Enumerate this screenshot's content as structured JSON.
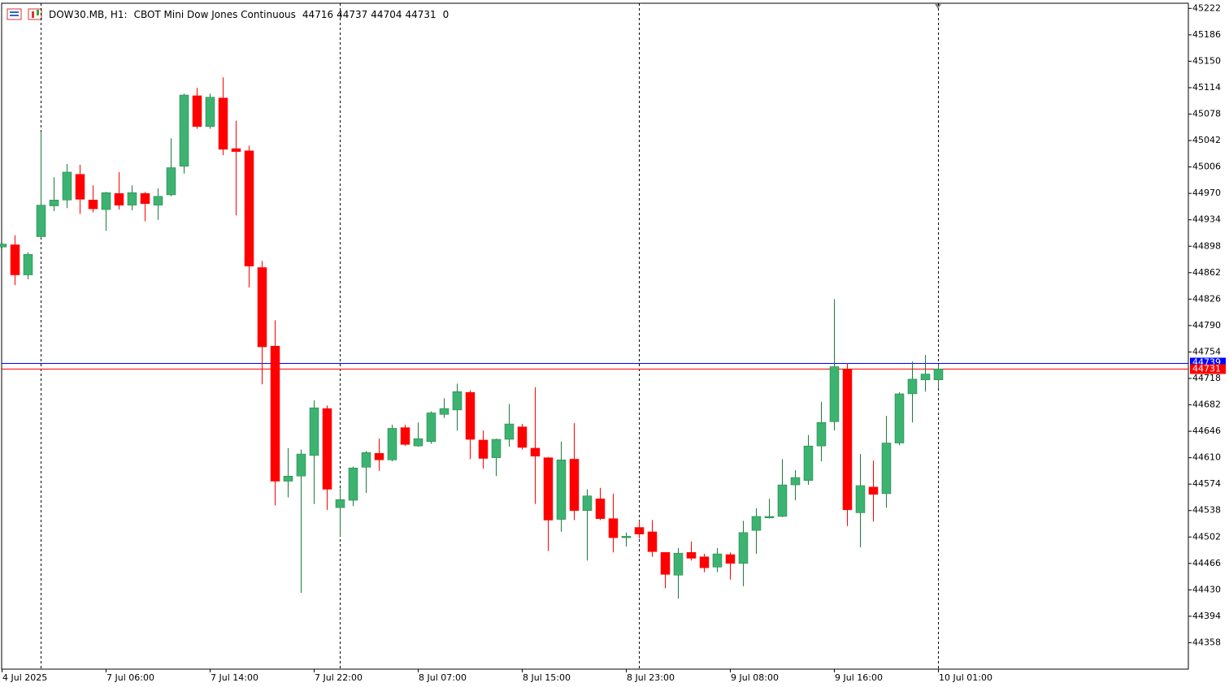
{
  "chart_data": {
    "type": "candlestick",
    "title": "DOW30.MB, H1:",
    "subtitle": "CBOT Mini Dow Jones Continuous",
    "header_extra": 0,
    "categories": [
      "4 Jul 2025",
      null,
      null,
      null,
      null,
      null,
      null,
      null,
      "7 Jul 06:00",
      null,
      null,
      null,
      null,
      null,
      null,
      null,
      "7 Jul 14:00",
      null,
      null,
      null,
      null,
      null,
      null,
      null,
      "7 Jul 22:00",
      null,
      null,
      null,
      null,
      null,
      null,
      null,
      "8 Jul 07:00",
      null,
      null,
      null,
      null,
      null,
      null,
      null,
      "8 Jul 15:00",
      null,
      null,
      null,
      null,
      null,
      null,
      null,
      "8 Jul 23:00",
      null,
      null,
      null,
      null,
      null,
      null,
      null,
      "9 Jul 08:00",
      null,
      null,
      null,
      null,
      null,
      null,
      null,
      "9 Jul 16:00",
      null,
      null,
      null,
      null,
      null,
      null,
      null,
      "10 Jul 01:00"
    ],
    "open": [
      44897,
      44900,
      44859,
      44911,
      44953,
      44961,
      44996,
      44961,
      44948,
      44970,
      44954,
      44970,
      44954,
      44968,
      45007,
      45103,
      45061,
      45100,
      45031,
      45028,
      44869,
      44762,
      44578,
      44585,
      44613,
      44677,
      44542,
      44552,
      44597,
      44616,
      44607,
      44651,
      44626,
      44632,
      44669,
      44675,
      44699,
      44634,
      44610,
      44635,
      44652,
      44623,
      44610,
      44526,
      44608,
      44538,
      44554,
      44527,
      44501,
      44515,
      44509,
      44481,
      44450,
      44481,
      44475,
      44461,
      44478,
      44466,
      44511,
      44528,
      44530,
      44573,
      44579,
      44626,
      44659,
      44731,
      44535,
      44570,
      44561,
      44630,
      44697,
      44716,
      44716
    ],
    "high": [
      44903,
      44913,
      44890,
      45054,
      44992,
      45010,
      45009,
      44981,
      44972,
      44999,
      44981,
      44972,
      44977,
      45045,
      45106,
      45114,
      45106,
      45128,
      45069,
      45035,
      44878,
      44797,
      44623,
      44621,
      44688,
      44681,
      44568,
      44598,
      44619,
      44636,
      44655,
      44655,
      44658,
      44673,
      44691,
      44711,
      44702,
      44647,
      44636,
      44683,
      44656,
      44706,
      44611,
      44632,
      44657,
      44567,
      44569,
      44561,
      44508,
      44524,
      44525,
      44481,
      44487,
      44496,
      44479,
      44487,
      44481,
      44524,
      44541,
      44554,
      44608,
      44593,
      44641,
      44686,
      44826,
      44739,
      44615,
      44606,
      44667,
      44699,
      44741,
      44750,
      44737
    ],
    "low": [
      44895,
      44845,
      44853,
      44909,
      44946,
      44950,
      44942,
      44944,
      44919,
      44948,
      44947,
      44932,
      44934,
      44966,
      44997,
      45058,
      45058,
      45022,
      44940,
      44842,
      44710,
      44545,
      44556,
      44426,
      44547,
      44539,
      44503,
      44544,
      44562,
      44592,
      44605,
      44626,
      44625,
      44629,
      44664,
      44647,
      44608,
      44595,
      44585,
      44625,
      44621,
      44547,
      44483,
      44509,
      44525,
      44470,
      44525,
      44481,
      44489,
      44500,
      44475,
      44432,
      44418,
      44470,
      44454,
      44454,
      44444,
      44435,
      44479,
      44527,
      44529,
      44552,
      44573,
      44605,
      44647,
      44517,
      44488,
      44523,
      44542,
      44627,
      44658,
      44700,
      44704
    ],
    "close": [
      44901,
      44859,
      44887,
      44954,
      44961,
      44999,
      44962,
      44949,
      44971,
      44954,
      44971,
      44956,
      44966,
      45005,
      45104,
      45061,
      45101,
      45030,
      45027,
      44871,
      44761,
      44578,
      44585,
      44615,
      44678,
      44567,
      44553,
      44596,
      44617,
      44607,
      44650,
      44628,
      44636,
      44671,
      44677,
      44700,
      44635,
      44609,
      44635,
      44656,
      44624,
      44612,
      44525,
      44607,
      44538,
      44558,
      44527,
      44501,
      44503,
      44506,
      44482,
      44451,
      44480,
      44473,
      44460,
      44479,
      44466,
      44508,
      44530,
      44530,
      44573,
      44583,
      44626,
      44658,
      44734,
      44539,
      44572,
      44560,
      44630,
      44697,
      44717,
      44724,
      44731
    ],
    "up_color": "#3cb371",
    "down_color": "#ff0000",
    "bid": 44731,
    "bid_color": "#ff0000",
    "ask": 44739,
    "ask_color": "#0000ff",
    "period_separators": [
      3,
      26,
      49,
      72
    ],
    "ylim": [
      44322,
      45229
    ],
    "yticks": [
      45222,
      45186,
      45150,
      45114,
      45078,
      45042,
      45006,
      44970,
      44934,
      44898,
      44862,
      44826,
      44790,
      44754,
      44718,
      44682,
      44646,
      44610,
      44574,
      44538,
      44502,
      44466,
      44430,
      44394,
      44358
    ]
  }
}
